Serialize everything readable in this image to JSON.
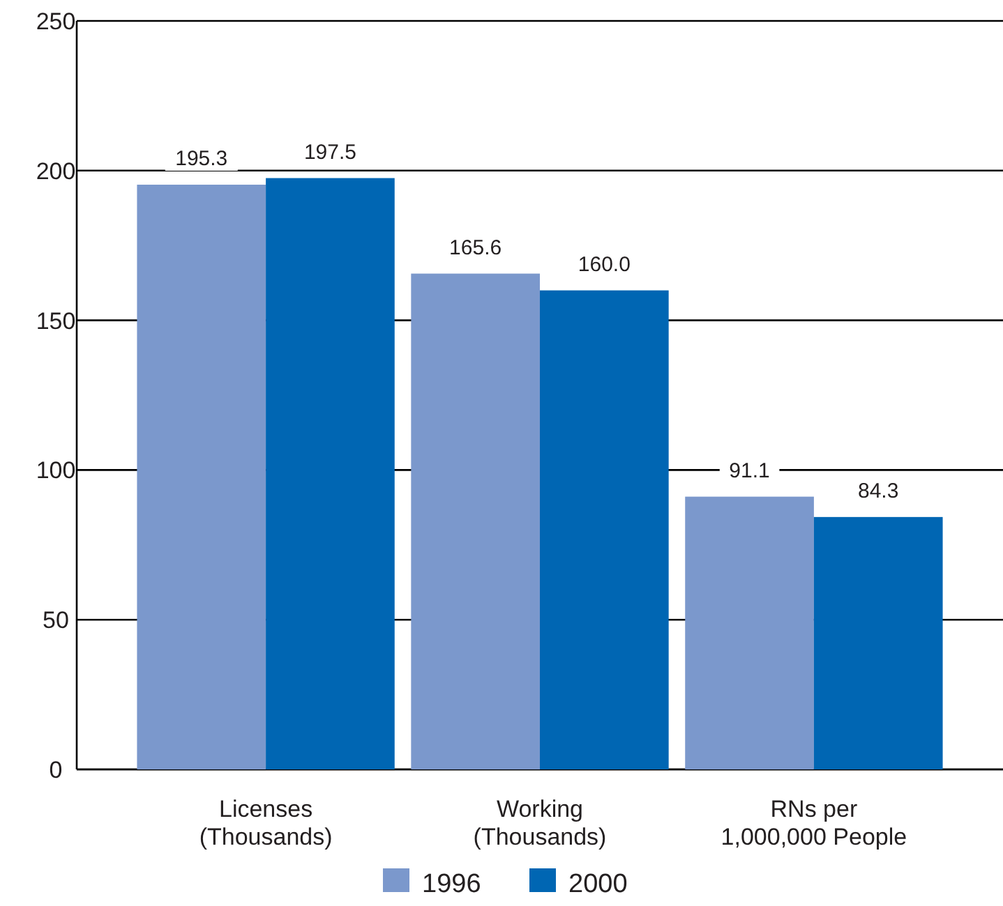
{
  "chart_data": {
    "type": "bar",
    "categories": [
      "Licenses\n(Thousands)",
      "Working\n(Thousands)",
      "RNs per\n1,000,000 People"
    ],
    "series": [
      {
        "name": "1996",
        "color": "#7b98cc",
        "values": [
          195.3,
          165.6,
          91.1
        ],
        "value_labels": [
          "195.3",
          "165.6",
          "91.1"
        ]
      },
      {
        "name": "2000",
        "color": "#0066b3",
        "values": [
          197.5,
          160.0,
          84.3
        ],
        "value_labels": [
          "197.5",
          "160.0",
          "84.3"
        ]
      }
    ],
    "ylim": [
      0,
      250
    ],
    "yticks": [
      0,
      50,
      100,
      150,
      200,
      250
    ],
    "grid": "y",
    "legend": "bottom"
  }
}
